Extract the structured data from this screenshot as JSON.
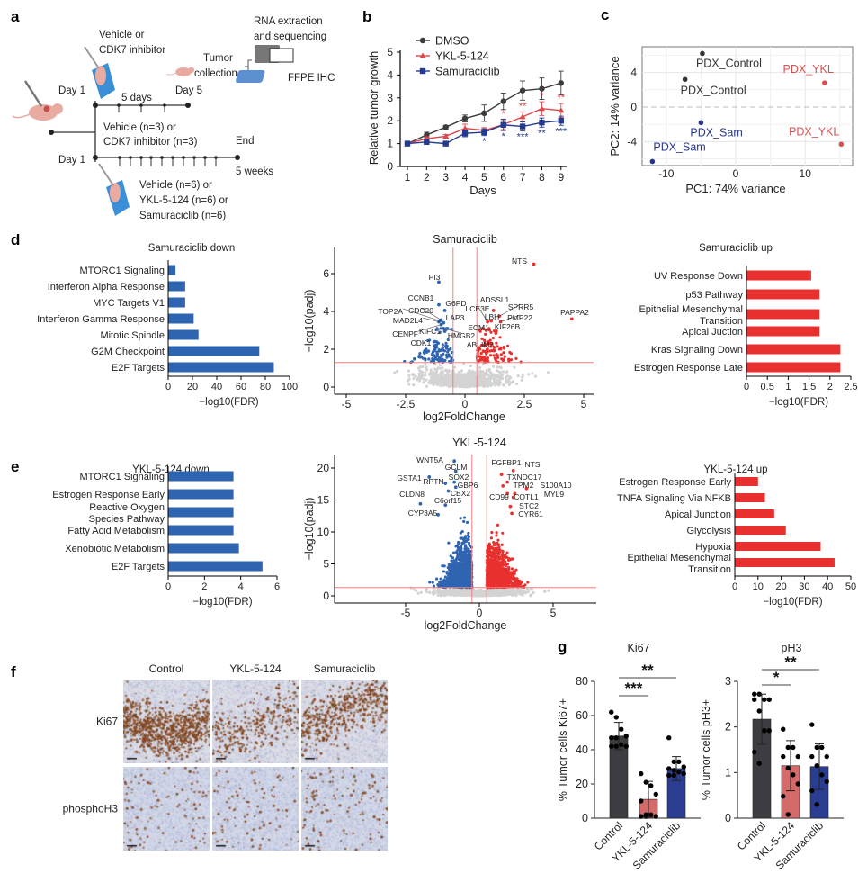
{
  "panel_labels": {
    "a": "a",
    "b": "b",
    "c": "c",
    "d": "d",
    "e": "e",
    "f": "f",
    "g": "g"
  },
  "panel_a": {
    "vehicle_or": "Vehicle or",
    "cdk7_inhibitor": "CDK7 inhibitor",
    "rna_extraction": "RNA extraction",
    "and_sequencing": "and sequencing",
    "tumor": "Tumor",
    "collection": "collection",
    "ffpe_ihc": "FFPE IHC",
    "day1_top": "Day 1",
    "five_days": "5 days",
    "day5": "Day 5",
    "vehicle_n3": "Vehicle (n=3) or",
    "cdk7_n3": "CDK7 inhibitor (n=3)",
    "end": "End",
    "day1_bottom": "Day 1",
    "five_weeks": "5 weeks",
    "vehicle_n6": "Vehicle (n=6) or",
    "ykl_n6": "YKL-5-124 (n=6) or",
    "sam_n6": "Samuraciclib (n=6)",
    "colors": {
      "mouse": "#e9aaa2",
      "glove": "#3a8fd6"
    }
  },
  "panel_f": {
    "columns": [
      "Control",
      "YKL-5-124",
      "Samuraciclib"
    ],
    "rows": [
      "Ki67",
      "phosphoH3"
    ]
  },
  "chart_data": [
    {
      "id": "b",
      "type": "line",
      "xlabel": "Days",
      "ylabel": "Relative tumor growth",
      "x": [
        1,
        2,
        3,
        4,
        5,
        6,
        7,
        8,
        9
      ],
      "ylim": [
        0,
        5
      ],
      "yticks": [
        0,
        1,
        2,
        3,
        4,
        5
      ],
      "legend_position": "top-left",
      "series": [
        {
          "name": "DMSO",
          "color": "#3c3c3c",
          "marker": "circle",
          "values": [
            1,
            1.38,
            1.72,
            2.1,
            2.33,
            2.85,
            3.32,
            3.4,
            3.65
          ],
          "error": [
            0,
            0.12,
            0.08,
            0.15,
            0.36,
            0.36,
            0.42,
            0.47,
            0.52
          ]
        },
        {
          "name": "YKL-5-124",
          "color": "#e0474c",
          "marker": "triangle",
          "values": [
            1,
            1.22,
            1.32,
            1.67,
            1.58,
            1.83,
            2.17,
            2.53,
            2.45
          ],
          "error": [
            0,
            0.08,
            0.08,
            0.18,
            0.12,
            0.22,
            0.22,
            0.3,
            0.3
          ]
        },
        {
          "name": "Samuraciclib",
          "color": "#233a8f",
          "marker": "square",
          "values": [
            1,
            1.07,
            1.0,
            1.45,
            1.5,
            1.82,
            1.75,
            1.92,
            2.0
          ],
          "error": [
            0,
            0.06,
            0.05,
            0.15,
            0.15,
            0.25,
            0.2,
            0.2,
            0.2
          ]
        }
      ],
      "significance": [
        {
          "series": "YKL-5-124",
          "day": 6,
          "stars": "*"
        },
        {
          "series": "YKL-5-124",
          "day": 7,
          "stars": "**"
        },
        {
          "series": "YKL-5-124",
          "day": 8,
          "stars": "*"
        },
        {
          "series": "YKL-5-124",
          "day": 9,
          "stars": "**"
        },
        {
          "series": "Samuraciclib",
          "day": 5,
          "stars": "*"
        },
        {
          "series": "Samuraciclib",
          "day": 6,
          "stars": "*"
        },
        {
          "series": "Samuraciclib",
          "day": 7,
          "stars": "***"
        },
        {
          "series": "Samuraciclib",
          "day": 8,
          "stars": "**"
        },
        {
          "series": "Samuraciclib",
          "day": 9,
          "stars": "***"
        }
      ]
    },
    {
      "id": "c",
      "type": "scatter",
      "xlabel": "PC1: 74% variance",
      "ylabel": "PC2: 14% variance",
      "xlim": [
        -13,
        16
      ],
      "ylim": [
        -7,
        7
      ],
      "xticks": [
        -10,
        0,
        10
      ],
      "yticks": [
        -4,
        0,
        4
      ],
      "grid": true,
      "points": [
        {
          "label": "PDX_Control",
          "x": -4.8,
          "y": 6.2,
          "color": "#333333"
        },
        {
          "label": "PDX_Control",
          "x": -7.3,
          "y": 3.2,
          "color": "#333333"
        },
        {
          "label": "PDX_YKL",
          "x": 12.8,
          "y": 2.8,
          "color": "#d9504f"
        },
        {
          "label": "PDX_YKL",
          "x": 15.2,
          "y": -4.3,
          "color": "#d9504f"
        },
        {
          "label": "PDX_Sam",
          "x": -5.0,
          "y": -1.8,
          "color": "#26368c"
        },
        {
          "label": "PDX_Sam",
          "x": -12.0,
          "y": -6.3,
          "color": "#26368c"
        }
      ]
    },
    {
      "id": "d_down",
      "type": "bar",
      "orientation": "horizontal",
      "title": "Samuraciclib down",
      "xlabel": "−log10(FDR)",
      "xlim": [
        0,
        100
      ],
      "xticks": [
        0,
        20,
        40,
        60,
        80,
        100
      ],
      "color": "#2f64b1",
      "categories": [
        "MTORC1 Signaling",
        "Interferon Alpha Response",
        "MYC Targets V1",
        "Interferon Gamma Response",
        "Mitotic Spindle",
        "G2M Checkpoint",
        "E2F Targets"
      ],
      "values": [
        6,
        14,
        14,
        21,
        25,
        75,
        87
      ]
    },
    {
      "id": "d_volcano",
      "type": "scatter",
      "title": "Samuraciclib",
      "xlabel": "log2FoldChange",
      "ylabel": "−log10(padj)",
      "xlim": [
        -5.3,
        5.3
      ],
      "ylim": [
        -0.3,
        7.2
      ],
      "xticks": [
        -5,
        -2.5,
        0,
        2.5,
        5
      ],
      "yticks": [
        0,
        2,
        4,
        6
      ],
      "thresholds": {
        "log2fc": 0.5,
        "padj_log10": 1.3
      },
      "colors": {
        "down": "#2f64b1",
        "up": "#e8312f",
        "ns": "#d3d3d3",
        "threshold": "#f08080"
      },
      "genes": [
        {
          "name": "NTS",
          "x": 2.9,
          "y": 6.5
        },
        {
          "name": "PAPPA2",
          "x": 4.5,
          "y": 3.6
        },
        {
          "name": "PI3",
          "x": -1.1,
          "y": 5.55
        },
        {
          "name": "CCNB1",
          "x": -1.1,
          "y": 4.35
        },
        {
          "name": "G6PD",
          "x": -0.85,
          "y": 4.05
        },
        {
          "name": "TOP2A",
          "x": -1.05,
          "y": 3.5
        },
        {
          "name": "CDC20",
          "x": -1.0,
          "y": 3.55
        },
        {
          "name": "MAD2L4",
          "x": -1.1,
          "y": 3.45
        },
        {
          "name": "LAP3",
          "x": -0.9,
          "y": 3.4
        },
        {
          "name": "CENPF",
          "x": -1.0,
          "y": 3.3
        },
        {
          "name": "KIFC1",
          "x": -0.85,
          "y": 2.95
        },
        {
          "name": "HMGB2",
          "x": -0.9,
          "y": 3.1
        },
        {
          "name": "CDK1",
          "x": -1.3,
          "y": 2.4
        },
        {
          "name": "ADSSL1",
          "x": 1.2,
          "y": 4.05
        },
        {
          "name": "LCE3E",
          "x": 0.95,
          "y": 3.45
        },
        {
          "name": "SPRR5",
          "x": 1.45,
          "y": 3.75
        },
        {
          "name": "LBH",
          "x": 1.1,
          "y": 3.5
        },
        {
          "name": "PMP22",
          "x": 1.5,
          "y": 3.45
        },
        {
          "name": "ECM1",
          "x": 0.9,
          "y": 3.0
        },
        {
          "name": "KIF26B",
          "x": 1.3,
          "y": 2.85
        },
        {
          "name": "ABLIM3",
          "x": 0.85,
          "y": 2.2
        }
      ]
    },
    {
      "id": "d_up",
      "type": "bar",
      "orientation": "horizontal",
      "title": "Samuraciclib up",
      "xlabel": "−log10(FDR)",
      "xlim": [
        0,
        2.5
      ],
      "xticks": [
        0,
        0.5,
        1,
        1.5,
        2,
        2.5
      ],
      "color": "#e8312f",
      "categories": [
        "UV Response Down",
        "p53 Pathway",
        "Epithelial Mesenchymal Transition",
        "Apical Juction",
        "Kras Signaling Down",
        "Estrogen Response Late"
      ],
      "values": [
        1.55,
        1.75,
        1.75,
        1.75,
        2.25,
        2.25
      ]
    },
    {
      "id": "e_down",
      "type": "bar",
      "orientation": "horizontal",
      "title": "YKL-5-124 down",
      "xlabel": "−log10(FDR)",
      "xlim": [
        0,
        6
      ],
      "xticks": [
        0,
        2,
        4,
        6
      ],
      "color": "#2f64b1",
      "categories": [
        "MTORC1 Signaling",
        "Estrogen Response Early",
        "Reactive Oxygen Species Pathway",
        "Fatty Acid Metabolism",
        "Xenobiotic Metabolism",
        "E2F Targets"
      ],
      "values": [
        3.6,
        3.6,
        3.6,
        3.6,
        3.9,
        5.2
      ]
    },
    {
      "id": "e_volcano",
      "type": "scatter",
      "title": "YKL-5-124",
      "xlabel": "log2FoldChange",
      "ylabel": "−log10(padj)",
      "xlim": [
        -9.8,
        8
      ],
      "ylim": [
        -1,
        22
      ],
      "xticks": [
        -5,
        0,
        5
      ],
      "yticks": [
        0,
        5,
        10,
        15,
        20
      ],
      "thresholds": {
        "log2fc": 0.5,
        "padj_log10": 1.3
      },
      "colors": {
        "down": "#2f64b1",
        "up": "#e8312f",
        "ns": "#d3d3d3",
        "threshold": "#f08080"
      },
      "genes": [
        {
          "name": "WNT5A",
          "x": -1.7,
          "y": 21.1
        },
        {
          "name": "GCLM",
          "x": -1.6,
          "y": 19.5
        },
        {
          "name": "GSTA1",
          "x": -3.4,
          "y": 18.6
        },
        {
          "name": "RPTN",
          "x": -2.3,
          "y": 17.6
        },
        {
          "name": "SOX2",
          "x": -1.7,
          "y": 17.8
        },
        {
          "name": "GBP6",
          "x": -1.6,
          "y": 17.0
        },
        {
          "name": "CLDN8",
          "x": -4.0,
          "y": 14.4
        },
        {
          "name": "CBX2",
          "x": -2.1,
          "y": 16.4
        },
        {
          "name": "C6orf15",
          "x": -2.3,
          "y": 14.2
        },
        {
          "name": "CYP3A5",
          "x": -2.8,
          "y": 12.7
        },
        {
          "name": "FGFBP1",
          "x": 1.5,
          "y": 19.0
        },
        {
          "name": "NTS",
          "x": 2.3,
          "y": 19.6
        },
        {
          "name": "TXNDC17",
          "x": 1.9,
          "y": 17.8
        },
        {
          "name": "TPM2",
          "x": 1.6,
          "y": 17.2
        },
        {
          "name": "S100A10",
          "x": 3.2,
          "y": 16.8
        },
        {
          "name": "CD99",
          "x": 1.9,
          "y": 16.0
        },
        {
          "name": "COTL1",
          "x": 2.4,
          "y": 16.0
        },
        {
          "name": "MYL9",
          "x": 2.3,
          "y": 15.4
        },
        {
          "name": "STC2",
          "x": 2.1,
          "y": 14.0
        },
        {
          "name": "CYR61",
          "x": 2.2,
          "y": 12.9
        }
      ]
    },
    {
      "id": "e_up",
      "type": "bar",
      "orientation": "horizontal",
      "title": "YKL-5-124 up",
      "xlabel": "−log10(FDR)",
      "xlim": [
        0,
        50
      ],
      "xticks": [
        0,
        10,
        20,
        30,
        40,
        50
      ],
      "color": "#e8312f",
      "categories": [
        "Estrogen Response Early",
        "TNFA Signaling Via NFKB",
        "Apical Junction",
        "Glycolysis",
        "Hypoxia",
        "Epithelial Mesenchymal Transition"
      ],
      "values": [
        10,
        13,
        17,
        22,
        37,
        43
      ]
    },
    {
      "id": "g_ki67",
      "type": "bar",
      "title": "Ki67",
      "ylabel": "% Tumor cells Ki67+",
      "ylim": [
        0,
        80
      ],
      "yticks": [
        0,
        20,
        40,
        60,
        80
      ],
      "categories": [
        "Control",
        "YKL-5-124",
        "Samuraciclib"
      ],
      "colors": [
        "#3b3d40",
        "#d46a6a",
        "#2b3d91"
      ],
      "values": [
        48,
        11,
        29
      ],
      "sd": [
        8,
        10.5,
        7
      ],
      "points": [
        [
          62,
          59,
          52,
          48,
          47,
          47,
          43,
          42,
          42,
          42
        ],
        [
          26,
          21,
          19,
          14,
          10,
          2,
          2,
          1,
          1,
          1
        ],
        [
          47,
          33,
          33,
          30,
          29,
          28,
          27,
          26,
          25,
          25
        ]
      ],
      "comparisons": [
        {
          "from": "Control",
          "to": "YKL-5-124",
          "stars": "***"
        },
        {
          "from": "Control",
          "to": "Samuraciclib",
          "stars": "**"
        }
      ]
    },
    {
      "id": "g_ph3",
      "type": "bar",
      "title": "pH3",
      "ylabel": "% Tumor cells pH3+",
      "ylim": [
        0,
        3
      ],
      "yticks": [
        0,
        1,
        2,
        3
      ],
      "categories": [
        "Control",
        "YKL-5-124",
        "Samuraciclib"
      ],
      "colors": [
        "#3b3d40",
        "#d46a6a",
        "#2b3d91"
      ],
      "values": [
        2.17,
        1.15,
        1.13
      ],
      "sd": [
        0.55,
        0.55,
        0.5
      ],
      "points": [
        [
          2.72,
          2.72,
          2.6,
          2.6,
          2.6,
          2.35,
          1.92,
          1.92,
          1.45,
          1.2
        ],
        [
          1.95,
          1.55,
          1.55,
          1.35,
          1.35,
          1.1,
          0.95,
          0.75,
          0.48,
          0.08
        ],
        [
          2.05,
          1.55,
          1.55,
          1.35,
          1.35,
          1.15,
          0.95,
          0.8,
          0.6,
          0.3
        ]
      ],
      "comparisons": [
        {
          "from": "Control",
          "to": "YKL-5-124",
          "stars": "*"
        },
        {
          "from": "Control",
          "to": "Samuraciclib",
          "stars": "**"
        }
      ]
    }
  ]
}
